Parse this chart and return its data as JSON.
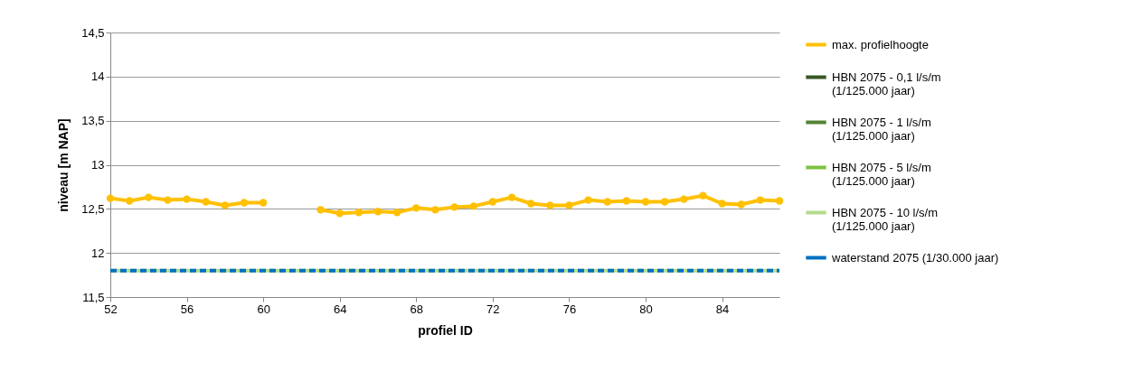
{
  "chart_data": {
    "type": "line",
    "xlabel": "profiel ID",
    "ylabel": "niveau [m NAP]",
    "x": [
      52,
      53,
      54,
      55,
      56,
      57,
      58,
      59,
      60,
      61,
      62,
      63,
      64,
      65,
      66,
      67,
      68,
      69,
      70,
      71,
      72,
      73,
      74,
      75,
      76,
      77,
      78,
      79,
      80,
      81,
      82,
      83,
      84,
      85,
      86,
      87
    ],
    "xlim": [
      52,
      87
    ],
    "xticks": [
      52,
      56,
      60,
      64,
      68,
      72,
      76,
      80,
      84
    ],
    "ylim": [
      11.5,
      14.5
    ],
    "yticks": [
      {
        "value": 11.5,
        "label": "11,5"
      },
      {
        "value": 12,
        "label": "12"
      },
      {
        "value": 12.5,
        "label": "12,5"
      },
      {
        "value": 13,
        "label": "13"
      },
      {
        "value": 13.5,
        "label": "13,5"
      },
      {
        "value": 14,
        "label": "14"
      },
      {
        "value": 14.5,
        "label": "14,5"
      }
    ],
    "grid": "y",
    "legend": "right",
    "series": [
      {
        "name": "max. profielhoogte",
        "color": "#ffc000",
        "marker": "circle",
        "line_style": "solid",
        "values": [
          12.62,
          12.59,
          12.63,
          12.6,
          12.61,
          12.58,
          12.54,
          12.57,
          12.57,
          null,
          null,
          12.49,
          12.45,
          12.46,
          12.47,
          12.46,
          12.51,
          12.49,
          12.52,
          12.53,
          12.58,
          12.63,
          12.56,
          12.54,
          12.54,
          12.6,
          12.58,
          12.59,
          12.58,
          12.58,
          12.61,
          12.65,
          12.56,
          12.55,
          12.6,
          12.59
        ]
      },
      {
        "name": "HBN 2075 - 0,1 l/s/m (1/125.000 jaar)",
        "color": "#375623",
        "marker": "none",
        "line_style": "solid",
        "values": [
          null,
          null,
          null,
          null,
          null,
          null,
          null,
          null,
          null,
          null,
          null,
          null,
          null,
          null,
          null,
          null,
          null,
          null,
          null,
          null,
          null,
          null,
          null,
          null,
          null,
          null,
          null,
          null,
          null,
          null,
          null,
          null,
          null,
          null,
          null,
          null
        ]
      },
      {
        "name": "HBN 2075 - 1 l/s/m (1/125.000 jaar)",
        "color": "#548235",
        "marker": "none",
        "line_style": "solid",
        "values": [
          null,
          null,
          null,
          null,
          null,
          null,
          null,
          null,
          null,
          null,
          null,
          null,
          null,
          null,
          null,
          null,
          null,
          null,
          null,
          null,
          null,
          null,
          null,
          null,
          null,
          null,
          null,
          null,
          null,
          null,
          null,
          null,
          null,
          null,
          null,
          null
        ]
      },
      {
        "name": "HBN 2075 - 5 l/s/m (1/125.000 jaar)",
        "color": "#7dc242",
        "marker": "none",
        "line_style": "solid",
        "values": [
          null,
          null,
          null,
          null,
          null,
          null,
          null,
          null,
          null,
          null,
          null,
          null,
          null,
          null,
          null,
          null,
          null,
          null,
          null,
          null,
          null,
          null,
          null,
          null,
          null,
          null,
          null,
          null,
          null,
          null,
          null,
          null,
          null,
          null,
          null,
          null
        ]
      },
      {
        "name": "HBN 2075 - 10 l/s/m (1/125.000 jaar)",
        "color": "#b5dc8c",
        "marker": "none",
        "line_style": "solid",
        "values": [
          11.8,
          11.8,
          11.8,
          11.8,
          11.8,
          11.8,
          11.8,
          11.8,
          11.8,
          11.8,
          11.8,
          11.8,
          11.8,
          11.8,
          11.8,
          11.8,
          11.8,
          11.8,
          11.8,
          11.8,
          11.8,
          11.8,
          11.8,
          11.8,
          11.8,
          11.8,
          11.8,
          11.8,
          11.8,
          11.8,
          11.8,
          11.8,
          11.8,
          11.8,
          11.8,
          11.8
        ]
      },
      {
        "name": "waterstand 2075 (1/30.000 jaar)",
        "color": "#0070c0",
        "marker": "none",
        "line_style": "dashed",
        "values": [
          11.8,
          11.8,
          11.8,
          11.8,
          11.8,
          11.8,
          11.8,
          11.8,
          11.8,
          11.8,
          11.8,
          11.8,
          11.8,
          11.8,
          11.8,
          11.8,
          11.8,
          11.8,
          11.8,
          11.8,
          11.8,
          11.8,
          11.8,
          11.8,
          11.8,
          11.8,
          11.8,
          11.8,
          11.8,
          11.8,
          11.8,
          11.8,
          11.8,
          11.8,
          11.8,
          11.8
        ]
      }
    ]
  }
}
